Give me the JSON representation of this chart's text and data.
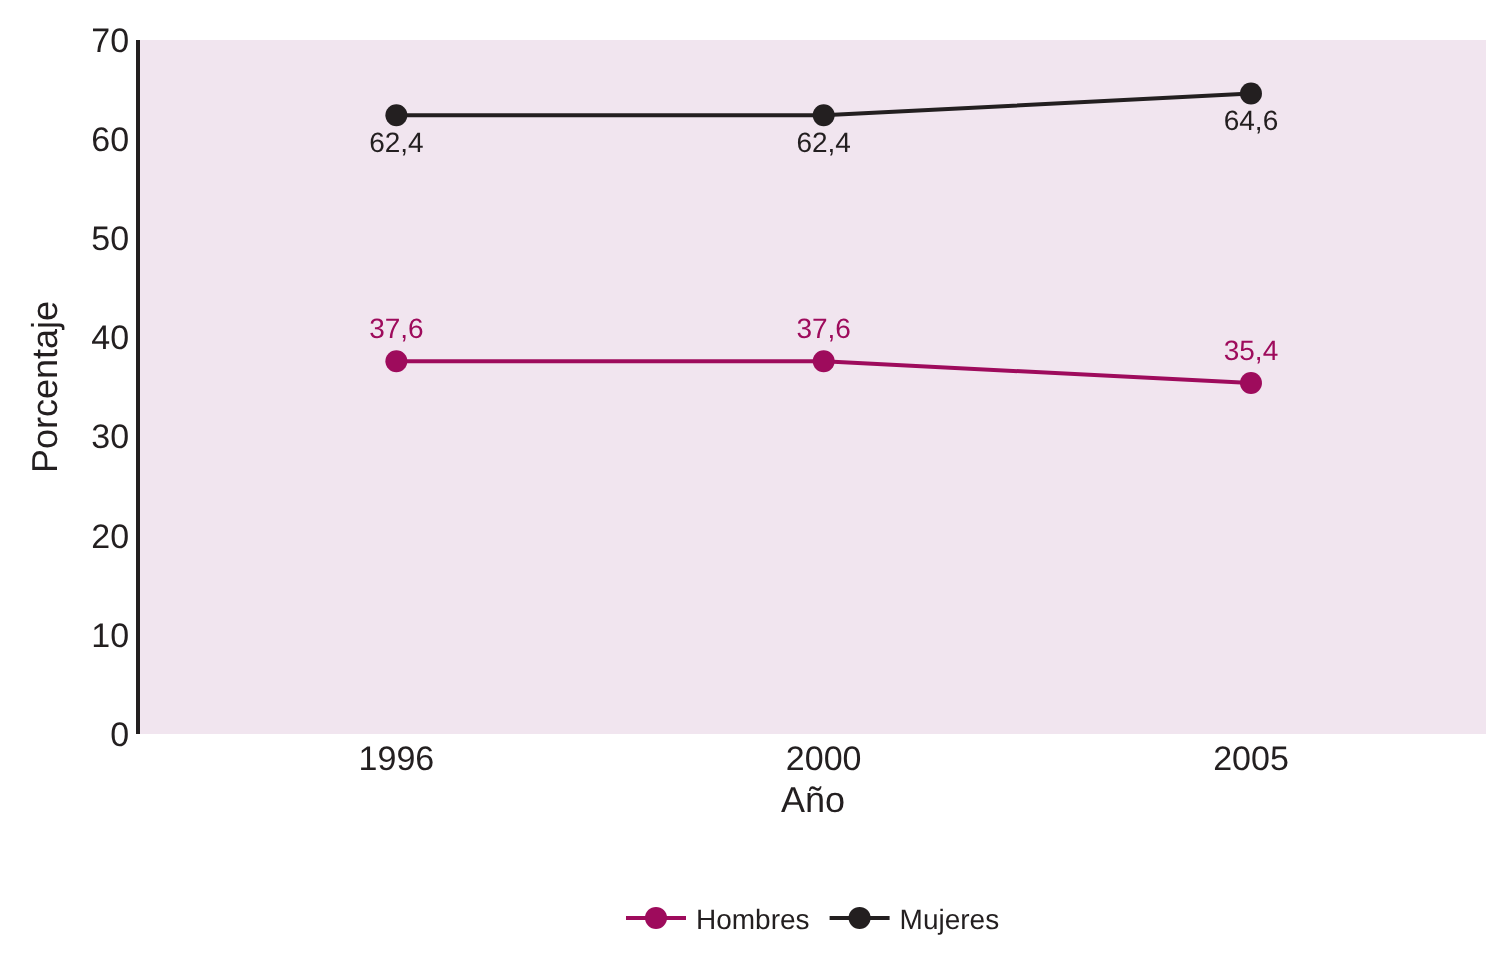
{
  "chart_data": {
    "type": "line",
    "xlabel": "Año",
    "ylabel": "Porcentaje",
    "categories": [
      "1996",
      "2000",
      "2005"
    ],
    "series": [
      {
        "name": "Hombres",
        "color": "#9e0b5c",
        "values": [
          37.6,
          37.6,
          35.4
        ],
        "value_labels": [
          "37,6",
          "37,6",
          "35,4"
        ]
      },
      {
        "name": "Mujeres",
        "color": "#231f20",
        "values": [
          62.4,
          62.4,
          64.6
        ],
        "value_labels": [
          "62,4",
          "62,4",
          "64,6"
        ]
      }
    ],
    "ylim": [
      0,
      70
    ],
    "yticks": [
      0,
      10,
      20,
      30,
      40,
      50,
      60,
      70
    ],
    "grid": false,
    "legend": "bottom",
    "marker": "circle",
    "line_style": "solid"
  }
}
